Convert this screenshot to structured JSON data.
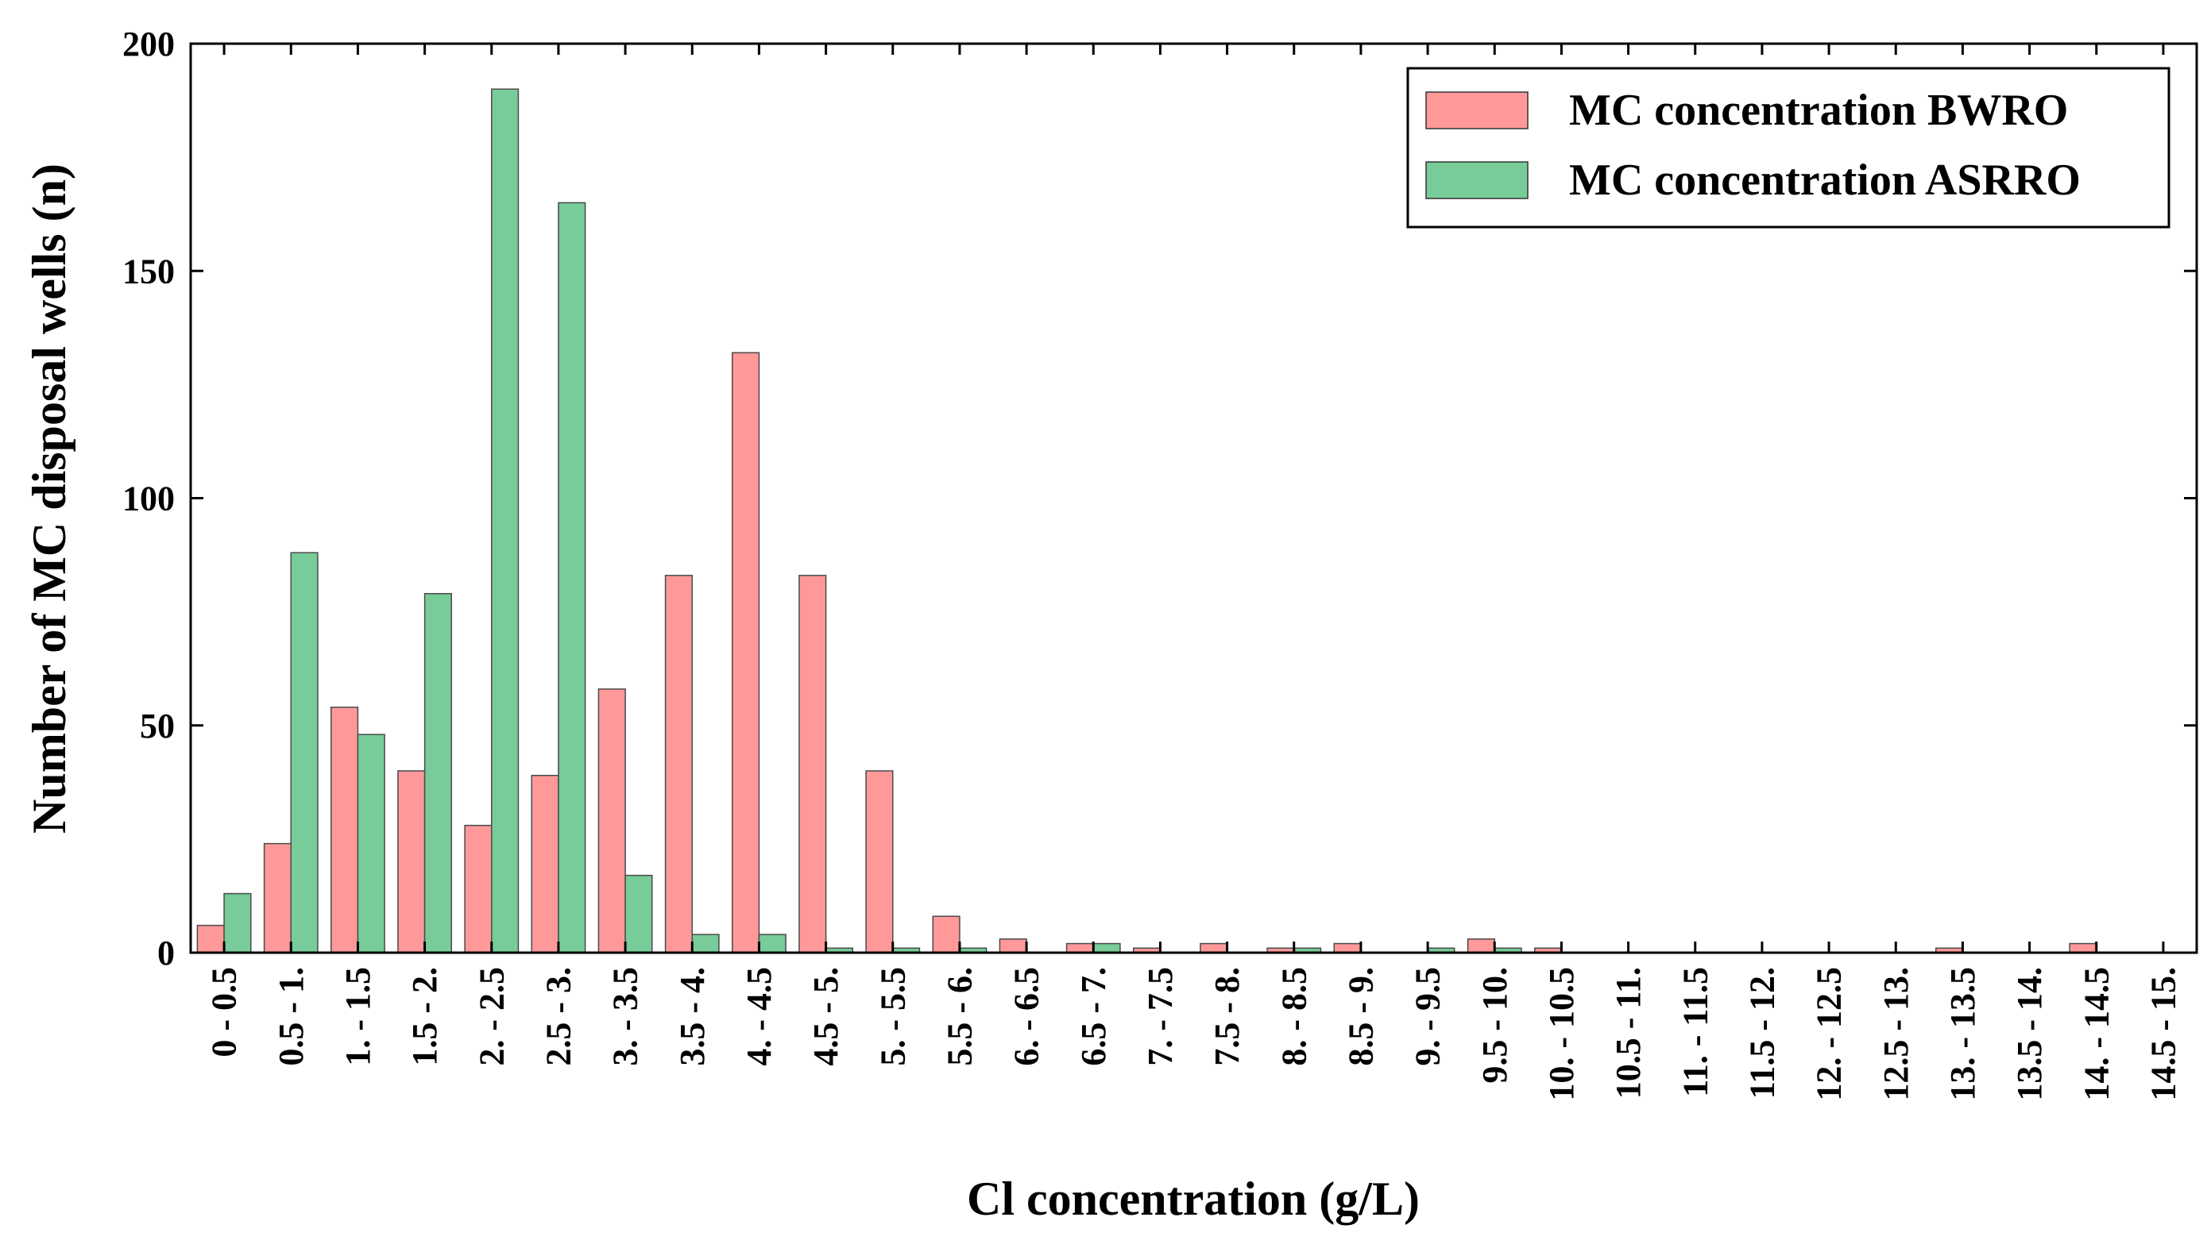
{
  "chart_data": {
    "type": "bar",
    "title": "",
    "xlabel": "Cl concentration (g/L)",
    "ylabel": "Number of MC disposal wells (n)",
    "ylim": [
      0,
      200
    ],
    "yticks": [
      "0",
      "50",
      "100",
      "150",
      "200"
    ],
    "legend_position": "top-right",
    "grid": false,
    "categories": [
      "0 - 0.5",
      "0.5 - 1.",
      "1. - 1.5",
      "1.5 - 2.",
      "2. - 2.5",
      "2.5 - 3.",
      "3. - 3.5",
      "3.5 - 4.",
      "4. - 4.5",
      "4.5 - 5.",
      "5. - 5.5",
      "5.5 - 6.",
      "6. - 6.5",
      "6.5 - 7.",
      "7. - 7.5",
      "7.5 - 8.",
      "8. - 8.5",
      "8.5 - 9.",
      "9. - 9.5",
      "9.5 - 10.",
      "10. - 10.5",
      "10.5 - 11.",
      "11. - 11.5",
      "11.5 - 12.",
      "12. - 12.5",
      "12.5 - 13.",
      "13. - 13.5",
      "13.5 - 14.",
      "14. - 14.5",
      "14.5 - 15."
    ],
    "series": [
      {
        "name": "MC concentration BWRO",
        "color": "#FF9999",
        "values": [
          6,
          24,
          54,
          40,
          28,
          39,
          58,
          83,
          132,
          83,
          40,
          8,
          3,
          2,
          1,
          2,
          1,
          2,
          0,
          3,
          1,
          0,
          0,
          0,
          0,
          0,
          1,
          0,
          2,
          0
        ]
      },
      {
        "name": "MC concentration ASRRO",
        "color": "#77CC99",
        "values": [
          13,
          88,
          48,
          79,
          190,
          165,
          17,
          4,
          4,
          1,
          1,
          1,
          0,
          2,
          0,
          0,
          1,
          0,
          1,
          1,
          0,
          0,
          0,
          0,
          0,
          0,
          0,
          0,
          0,
          0
        ]
      }
    ]
  }
}
